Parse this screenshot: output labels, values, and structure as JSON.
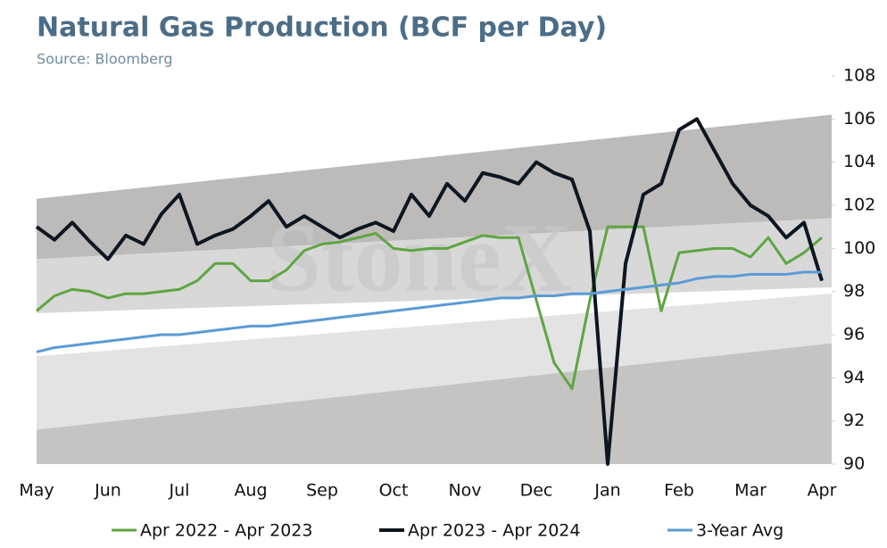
{
  "chart_data": {
    "type": "line",
    "title": "Natural Gas Production (BCF per Day)",
    "subtitle": "Source: Bloomberg",
    "watermark": "StoneX",
    "categories": [
      "May",
      null,
      null,
      null,
      "Jun",
      null,
      null,
      null,
      "Jul",
      null,
      null,
      null,
      "Aug",
      null,
      null,
      null,
      "Sep",
      null,
      null,
      null,
      "Oct",
      null,
      null,
      null,
      "Nov",
      null,
      null,
      null,
      "Dec",
      null,
      null,
      null,
      "Jan",
      null,
      null,
      null,
      "Feb",
      null,
      null,
      null,
      "Mar",
      null,
      null,
      null,
      "Apr"
    ],
    "series": [
      {
        "name": "Apr 2022 - Apr 2023",
        "color": "#5fa542",
        "width": 3,
        "values": [
          97.1,
          97.8,
          98.1,
          98.0,
          97.7,
          97.9,
          97.9,
          98.0,
          98.1,
          98.5,
          99.3,
          99.3,
          98.5,
          98.5,
          99.0,
          99.9,
          100.2,
          100.3,
          100.5,
          100.7,
          100.0,
          99.9,
          100.0,
          100.0,
          100.3,
          100.6,
          100.5,
          100.5,
          97.6,
          94.7,
          93.5,
          97.6,
          101.0,
          101.0,
          101.0,
          97.1,
          99.8,
          99.9,
          100.0,
          100.0,
          99.6,
          100.5,
          99.3,
          99.8,
          100.5
        ]
      },
      {
        "name": "Apr 2023 - Apr 2024",
        "color": "#0d1620",
        "width": 4,
        "values": [
          101.0,
          100.4,
          101.2,
          100.3,
          99.5,
          100.6,
          100.2,
          101.6,
          102.5,
          100.2,
          100.6,
          100.9,
          101.5,
          102.2,
          101.0,
          101.5,
          101.0,
          100.5,
          100.9,
          101.2,
          100.8,
          102.5,
          101.5,
          103.0,
          102.2,
          103.5,
          103.3,
          103.0,
          104.0,
          103.5,
          103.2,
          100.8,
          90.0,
          99.3,
          102.5,
          103.0,
          105.5,
          106.0,
          104.5,
          103.0,
          102.0,
          101.5,
          100.5,
          101.2,
          98.5
        ]
      },
      {
        "name": "3-Year Avg",
        "color": "#5b9bd5",
        "width": 3,
        "values": [
          95.2,
          95.4,
          95.5,
          95.6,
          95.7,
          95.8,
          95.9,
          96.0,
          96.0,
          96.1,
          96.2,
          96.3,
          96.4,
          96.4,
          96.5,
          96.6,
          96.7,
          96.8,
          96.9,
          97.0,
          97.1,
          97.2,
          97.3,
          97.4,
          97.5,
          97.6,
          97.7,
          97.7,
          97.8,
          97.8,
          97.9,
          97.9,
          98.0,
          98.1,
          98.2,
          98.3,
          98.4,
          98.6,
          98.7,
          98.7,
          98.8,
          98.8,
          98.8,
          98.9,
          98.9
        ]
      }
    ],
    "bands": [
      {
        "color": "#bdbbba",
        "start": [
          99.5,
          102.3
        ],
        "end": [
          101.4,
          106.2
        ]
      },
      {
        "color": "#d8d8d8",
        "start": [
          97.0,
          99.5
        ],
        "end": [
          98.2,
          101.4
        ]
      },
      {
        "color": "#e3e3e3",
        "start": [
          91.6,
          95.0
        ],
        "end": [
          95.6,
          97.9
        ]
      },
      {
        "color": "#c6c4c3",
        "start": [
          90,
          91.6
        ],
        "end": [
          90,
          95.6
        ]
      }
    ],
    "ylim": [
      90,
      108
    ],
    "yticks": [
      90,
      92,
      94,
      96,
      98,
      100,
      102,
      104,
      106,
      108
    ],
    "legend": "bottom"
  }
}
